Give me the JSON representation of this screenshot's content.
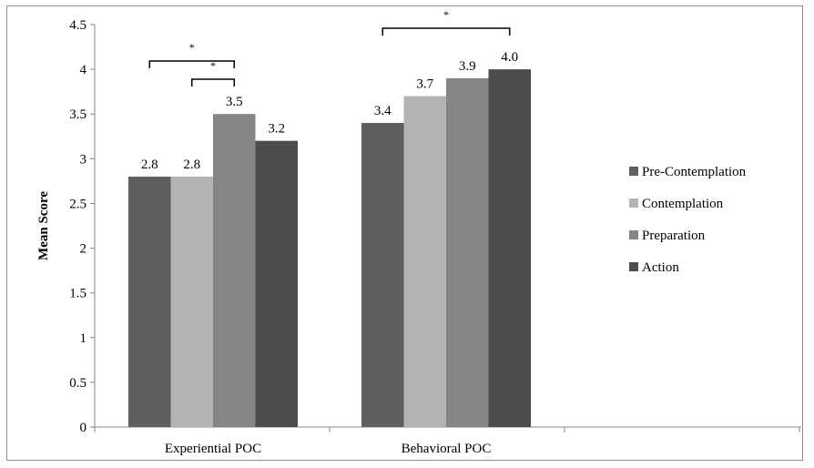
{
  "chart_data": {
    "type": "bar",
    "title": "",
    "xlabel": "",
    "ylabel": "Mean Score",
    "ylim": [
      0,
      4.5
    ],
    "yticks": [
      "0",
      "0.5",
      "1",
      "1.5",
      "2",
      "2.5",
      "3",
      "3.5",
      "4",
      "4.5"
    ],
    "categories": [
      "Experiential POC",
      "Behavioral POC"
    ],
    "series": [
      {
        "name": "Pre-Contemplation",
        "values": [
          2.8,
          3.4
        ],
        "labels": [
          "2.8",
          "3.4"
        ],
        "color": "#5f5f5f"
      },
      {
        "name": "Contemplation",
        "values": [
          2.8,
          3.7
        ],
        "labels": [
          "2.8",
          "3.7"
        ],
        "color": "#b3b3b3"
      },
      {
        "name": "Preparation",
        "values": [
          3.5,
          3.9
        ],
        "labels": [
          "3.5",
          "3.9"
        ],
        "color": "#858585"
      },
      {
        "name": "Action",
        "values": [
          3.2,
          4.0
        ],
        "labels": [
          "3.2",
          "4.0"
        ],
        "color": "#4c4c4c"
      }
    ],
    "significance": [
      {
        "category": 0,
        "from_series": 0,
        "to_series": 2,
        "label": "*"
      },
      {
        "category": 0,
        "from_series": 1,
        "to_series": 2,
        "label": "*"
      },
      {
        "category": 1,
        "from_series": 0,
        "to_series": 3,
        "label": "*"
      }
    ],
    "grid": false,
    "legend_position": "right"
  }
}
